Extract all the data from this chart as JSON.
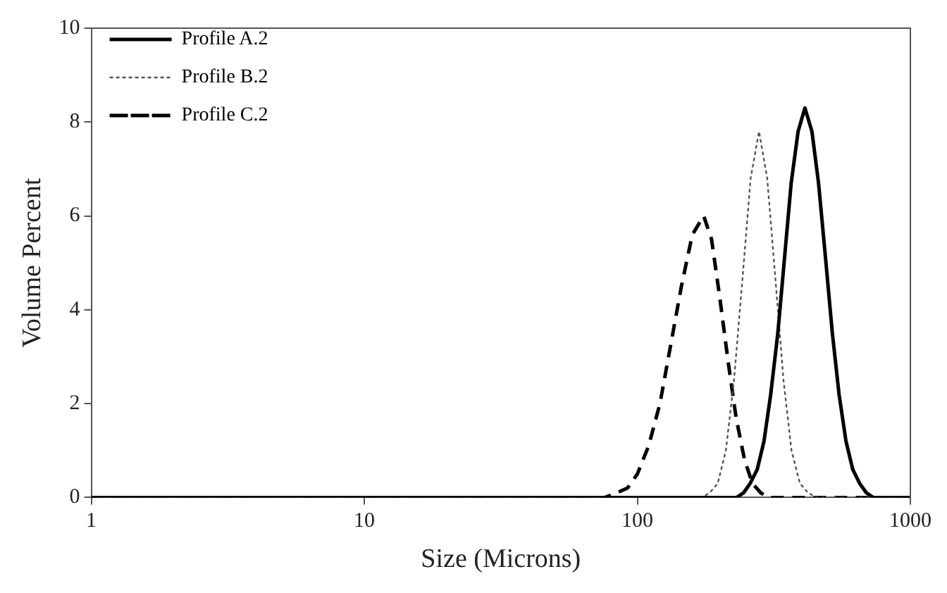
{
  "chart_data": {
    "type": "line",
    "xlabel": "Size (Microns)",
    "ylabel": "Volume Percent",
    "log": "x",
    "xlim": [
      1,
      1000
    ],
    "xticks": [
      1,
      10,
      100,
      1000
    ],
    "ylim": [
      0,
      10
    ],
    "yticks": [
      0,
      2,
      4,
      6,
      8,
      10
    ],
    "grid": false,
    "legend": "top left",
    "marker": "none",
    "series": [
      {
        "name": "Profile A.2",
        "color": "#000000",
        "line_style": "solid",
        "x": [
          1,
          218,
          231,
          245,
          259,
          275,
          291,
          308,
          327,
          346,
          366,
          388,
          411,
          436,
          461,
          489,
          518,
          548,
          581,
          615,
          652,
          690,
          731,
          774,
          1000
        ],
        "values": [
          0,
          0,
          0,
          0.1,
          0.3,
          0.6,
          1.2,
          2.2,
          3.5,
          5.1,
          6.7,
          7.8,
          8.3,
          7.8,
          6.7,
          5.1,
          3.5,
          2.2,
          1.2,
          0.6,
          0.3,
          0.1,
          0,
          0,
          0
        ]
      },
      {
        "name": "Profile B.2",
        "color": "#555555",
        "line_style": "dotted",
        "x": [
          1,
          172,
          184,
          197,
          211,
          226,
          243,
          260,
          279,
          299,
          320,
          343,
          367,
          394,
          422,
          452,
          1000
        ],
        "values": [
          0,
          0,
          0.1,
          0.3,
          1.0,
          2.5,
          4.7,
          6.8,
          7.8,
          6.8,
          4.7,
          2.5,
          1.0,
          0.3,
          0.1,
          0,
          0
        ]
      },
      {
        "name": "Profile C.2",
        "color": "#000000",
        "line_style": "dashed",
        "x": [
          1,
          76,
          84,
          92,
          100,
          110,
          121,
          132,
          145,
          159,
          175,
          187,
          200,
          215,
          230,
          247,
          264,
          283,
          303,
          1000
        ],
        "values": [
          0,
          0,
          0.1,
          0.2,
          0.5,
          1.1,
          2.0,
          3.2,
          4.5,
          5.6,
          6.0,
          5.5,
          4.3,
          2.9,
          1.7,
          0.8,
          0.3,
          0.1,
          0,
          0
        ]
      }
    ]
  }
}
